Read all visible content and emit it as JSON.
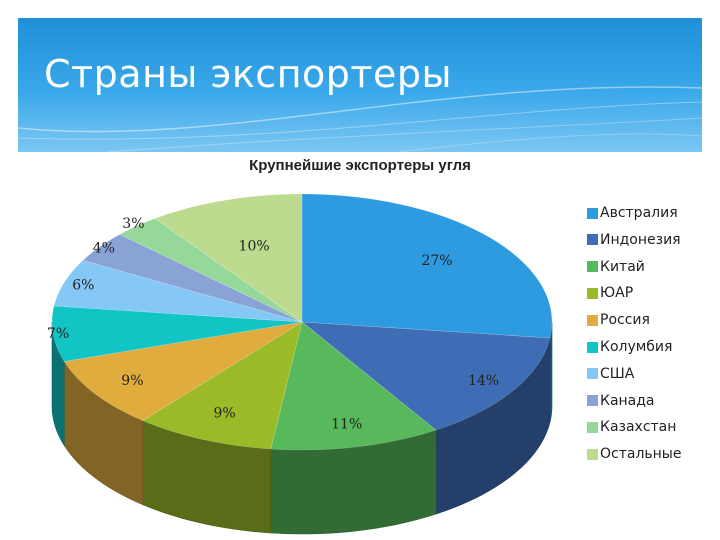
{
  "slide": {
    "title": "Страны экспортеры"
  },
  "chart_data": {
    "type": "pie",
    "title": "Крупнейшие экспортеры угля",
    "categories": [
      "Австралия",
      "Индонезия",
      "Китай",
      "ЮАР",
      "Россия",
      "Колумбия",
      "США",
      "Канада",
      "Казахстан",
      "Остальные"
    ],
    "values": [
      27,
      14,
      11,
      9,
      9,
      7,
      6,
      4,
      3,
      10
    ],
    "labels": [
      "27%",
      "14%",
      "11%",
      "9%",
      "9%",
      "7%",
      "6%",
      "4%",
      "3%",
      "10%"
    ],
    "colors": [
      "#2e9be0",
      "#3e6db5",
      "#58b85c",
      "#9aba28",
      "#e0ac3e",
      "#12c4c4",
      "#86c8f5",
      "#8aa3d6",
      "#96d89a",
      "#bddb8e"
    ],
    "legend_position": "right"
  }
}
